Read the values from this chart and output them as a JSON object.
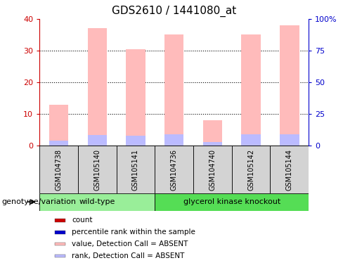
{
  "title": "GDS2610 / 1441080_at",
  "samples": [
    "GSM104738",
    "GSM105140",
    "GSM105141",
    "GSM104736",
    "GSM104740",
    "GSM105142",
    "GSM105144"
  ],
  "groups": {
    "wild-type": [
      0,
      1,
      2
    ],
    "glycerol kinase knockout": [
      3,
      4,
      5,
      6
    ]
  },
  "pink_bar_heights": [
    13,
    37,
    30.5,
    35,
    8,
    35,
    38
  ],
  "blue_bar_heights": [
    4.2,
    8.5,
    8.0,
    9.0,
    2.8,
    9.0,
    9.0
  ],
  "ylim_left": [
    0,
    40
  ],
  "ylim_right": [
    0,
    100
  ],
  "yticks_left": [
    0,
    10,
    20,
    30,
    40
  ],
  "yticks_right": [
    0,
    25,
    50,
    75,
    100
  ],
  "ytick_labels_right": [
    "0",
    "25",
    "50",
    "75",
    "100%"
  ],
  "left_axis_color": "#cc0000",
  "right_axis_color": "#0000cc",
  "pink_color": "#ffbbbb",
  "blue_color": "#bbbbff",
  "wildtype_color": "#99ee99",
  "knockout_color": "#55dd55",
  "sample_box_color": "#d3d3d3",
  "legend_items": [
    {
      "color": "#cc0000",
      "label": "count"
    },
    {
      "color": "#0000cc",
      "label": "percentile rank within the sample"
    },
    {
      "color": "#ffbbbb",
      "label": "value, Detection Call = ABSENT"
    },
    {
      "color": "#bbbbff",
      "label": "rank, Detection Call = ABSENT"
    }
  ],
  "genotype_label": "genotype/variation",
  "title_fontsize": 11
}
